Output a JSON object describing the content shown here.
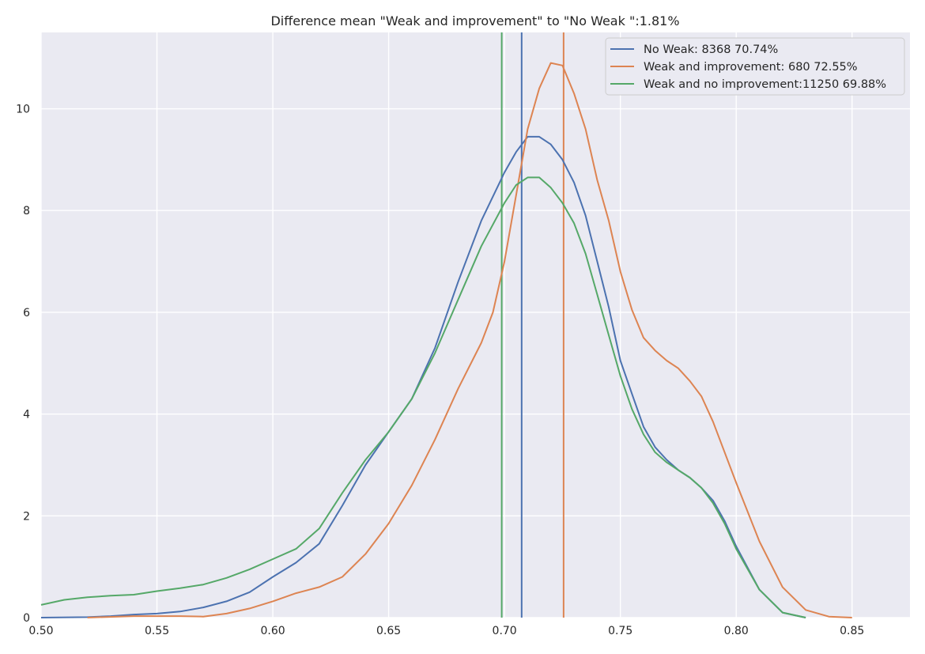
{
  "chart_data": {
    "type": "line",
    "title": "Difference mean \"Weak and improvement\" to \"No Weak \":1.81%",
    "xlabel": "",
    "ylabel": "",
    "xlim": [
      0.5,
      0.875
    ],
    "ylim": [
      0,
      11.5
    ],
    "xticks": [
      {
        "value": 0.5,
        "label": "0.50"
      },
      {
        "value": 0.55,
        "label": "0.55"
      },
      {
        "value": 0.6,
        "label": "0.60"
      },
      {
        "value": 0.65,
        "label": "0.65"
      },
      {
        "value": 0.7,
        "label": "0.70"
      },
      {
        "value": 0.75,
        "label": "0.75"
      },
      {
        "value": 0.8,
        "label": "0.80"
      },
      {
        "value": 0.85,
        "label": "0.85"
      }
    ],
    "yticks": [
      {
        "value": 0,
        "label": "0"
      },
      {
        "value": 2,
        "label": "2"
      },
      {
        "value": 4,
        "label": "4"
      },
      {
        "value": 6,
        "label": "6"
      },
      {
        "value": 8,
        "label": "8"
      },
      {
        "value": 10,
        "label": "10"
      }
    ],
    "grid": true,
    "legend_position": "top-right",
    "background_color": "#eaeaf2",
    "series": [
      {
        "name": "No Weak: 8368 70.74%",
        "color": "#4c72b0",
        "mean": 0.7074,
        "x": [
          0.5,
          0.52,
          0.53,
          0.54,
          0.55,
          0.56,
          0.57,
          0.58,
          0.59,
          0.6,
          0.61,
          0.62,
          0.63,
          0.64,
          0.65,
          0.66,
          0.67,
          0.68,
          0.69,
          0.7,
          0.705,
          0.71,
          0.715,
          0.72,
          0.725,
          0.73,
          0.735,
          0.74,
          0.745,
          0.75,
          0.755,
          0.76,
          0.765,
          0.77,
          0.775,
          0.78,
          0.785,
          0.79,
          0.795,
          0.8,
          0.81,
          0.82,
          0.83
        ],
        "y": [
          0.0,
          0.01,
          0.03,
          0.06,
          0.08,
          0.12,
          0.2,
          0.32,
          0.5,
          0.8,
          1.08,
          1.45,
          2.2,
          3.0,
          3.65,
          4.3,
          5.3,
          6.6,
          7.8,
          8.75,
          9.15,
          9.45,
          9.45,
          9.3,
          9.0,
          8.55,
          7.9,
          7.0,
          6.1,
          5.05,
          4.4,
          3.75,
          3.35,
          3.1,
          2.9,
          2.75,
          2.55,
          2.3,
          1.9,
          1.4,
          0.55,
          0.1,
          0.0
        ]
      },
      {
        "name": "Weak and improvement: 680 72.55%",
        "color": "#dd8452",
        "mean": 0.7255,
        "x": [
          0.52,
          0.54,
          0.56,
          0.57,
          0.58,
          0.59,
          0.6,
          0.61,
          0.62,
          0.63,
          0.64,
          0.65,
          0.66,
          0.67,
          0.68,
          0.69,
          0.695,
          0.7,
          0.705,
          0.71,
          0.715,
          0.72,
          0.725,
          0.73,
          0.735,
          0.74,
          0.745,
          0.75,
          0.755,
          0.76,
          0.765,
          0.77,
          0.775,
          0.78,
          0.785,
          0.79,
          0.8,
          0.81,
          0.82,
          0.83,
          0.84,
          0.85
        ],
        "y": [
          0.0,
          0.03,
          0.03,
          0.02,
          0.08,
          0.18,
          0.32,
          0.48,
          0.6,
          0.8,
          1.25,
          1.85,
          2.6,
          3.5,
          4.5,
          5.4,
          6.0,
          7.0,
          8.3,
          9.6,
          10.4,
          10.9,
          10.85,
          10.3,
          9.6,
          8.6,
          7.8,
          6.8,
          6.05,
          5.5,
          5.25,
          5.05,
          4.9,
          4.65,
          4.35,
          3.85,
          2.65,
          1.5,
          0.6,
          0.15,
          0.02,
          0.0
        ]
      },
      {
        "name": "Weak and no improvement:11250 69.88%",
        "color": "#55a868",
        "mean": 0.6988,
        "x": [
          0.5,
          0.51,
          0.52,
          0.53,
          0.54,
          0.55,
          0.56,
          0.57,
          0.58,
          0.59,
          0.6,
          0.61,
          0.62,
          0.63,
          0.64,
          0.65,
          0.66,
          0.67,
          0.68,
          0.69,
          0.7,
          0.705,
          0.71,
          0.715,
          0.72,
          0.725,
          0.73,
          0.735,
          0.74,
          0.745,
          0.75,
          0.755,
          0.76,
          0.765,
          0.77,
          0.775,
          0.78,
          0.785,
          0.79,
          0.795,
          0.8,
          0.81,
          0.82,
          0.83
        ],
        "y": [
          0.25,
          0.35,
          0.4,
          0.43,
          0.45,
          0.52,
          0.58,
          0.65,
          0.78,
          0.95,
          1.15,
          1.35,
          1.75,
          2.45,
          3.1,
          3.65,
          4.3,
          5.2,
          6.25,
          7.3,
          8.15,
          8.5,
          8.65,
          8.65,
          8.45,
          8.15,
          7.75,
          7.15,
          6.35,
          5.55,
          4.75,
          4.1,
          3.6,
          3.25,
          3.05,
          2.9,
          2.75,
          2.55,
          2.25,
          1.85,
          1.35,
          0.55,
          0.1,
          0.0
        ]
      }
    ]
  }
}
